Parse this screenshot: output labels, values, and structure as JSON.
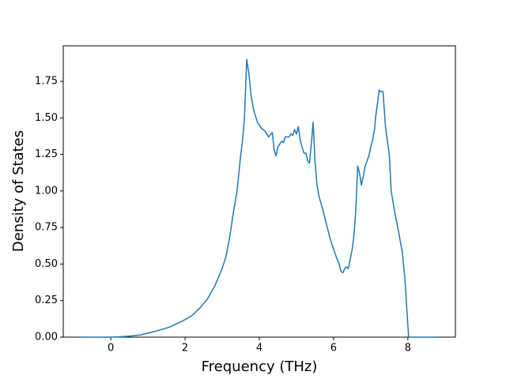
{
  "chart_data": {
    "type": "line",
    "xlabel": "Frequency (THz)",
    "ylabel": "Density of States",
    "color": "#1f77b4",
    "x": [
      -0.8,
      0,
      0.4,
      0.8,
      1.2,
      1.6,
      2.0,
      2.2,
      2.4,
      2.6,
      2.8,
      3.0,
      3.1,
      3.2,
      3.3,
      3.4,
      3.5,
      3.55,
      3.6,
      3.66,
      3.72,
      3.78,
      3.85,
      3.95,
      4.05,
      4.15,
      4.25,
      4.35,
      4.4,
      4.45,
      4.5,
      4.6,
      4.65,
      4.7,
      4.8,
      4.85,
      4.9,
      4.95,
      5.0,
      5.05,
      5.1,
      5.15,
      5.2,
      5.25,
      5.3,
      5.35,
      5.4,
      5.45,
      5.5,
      5.55,
      5.6,
      5.7,
      5.8,
      5.9,
      6.0,
      6.1,
      6.15,
      6.2,
      6.25,
      6.3,
      6.35,
      6.4,
      6.5,
      6.55,
      6.6,
      6.65,
      6.7,
      6.75,
      6.8,
      6.85,
      6.95,
      7.0,
      7.05,
      7.1,
      7.13,
      7.23,
      7.26,
      7.33,
      7.4,
      7.5,
      7.55,
      7.65,
      7.75,
      7.85,
      7.92,
      7.97,
      8.02,
      8.8
    ],
    "values": [
      0,
      0,
      0.005,
      0.015,
      0.04,
      0.07,
      0.12,
      0.15,
      0.2,
      0.26,
      0.35,
      0.47,
      0.55,
      0.68,
      0.85,
      1.0,
      1.25,
      1.35,
      1.5,
      1.9,
      1.8,
      1.65,
      1.55,
      1.47,
      1.43,
      1.41,
      1.37,
      1.4,
      1.28,
      1.24,
      1.3,
      1.34,
      1.33,
      1.37,
      1.37,
      1.39,
      1.38,
      1.42,
      1.39,
      1.44,
      1.35,
      1.3,
      1.26,
      1.26,
      1.21,
      1.19,
      1.32,
      1.47,
      1.2,
      1.05,
      0.97,
      0.88,
      0.78,
      0.68,
      0.6,
      0.53,
      0.5,
      0.45,
      0.44,
      0.47,
      0.48,
      0.47,
      0.6,
      0.7,
      0.88,
      1.17,
      1.12,
      1.04,
      1.1,
      1.17,
      1.24,
      1.3,
      1.35,
      1.42,
      1.5,
      1.69,
      1.68,
      1.68,
      1.43,
      1.25,
      1.0,
      0.85,
      0.72,
      0.58,
      0.4,
      0.2,
      0,
      0
    ],
    "xlim": [
      -1.28,
      9.28
    ],
    "ylim": [
      0,
      1.993
    ],
    "xticks": [
      0,
      2,
      4,
      6,
      8
    ],
    "yticks": [
      {
        "value": 0,
        "label": "0.00"
      },
      {
        "value": 0.25,
        "label": "0.25"
      },
      {
        "value": 0.5,
        "label": "0.50"
      },
      {
        "value": 0.75,
        "label": "0.75"
      },
      {
        "value": 1.0,
        "label": "1.00"
      },
      {
        "value": 1.25,
        "label": "1.25"
      },
      {
        "value": 1.5,
        "label": "1.50"
      },
      {
        "value": 1.75,
        "label": "1.75"
      }
    ]
  }
}
